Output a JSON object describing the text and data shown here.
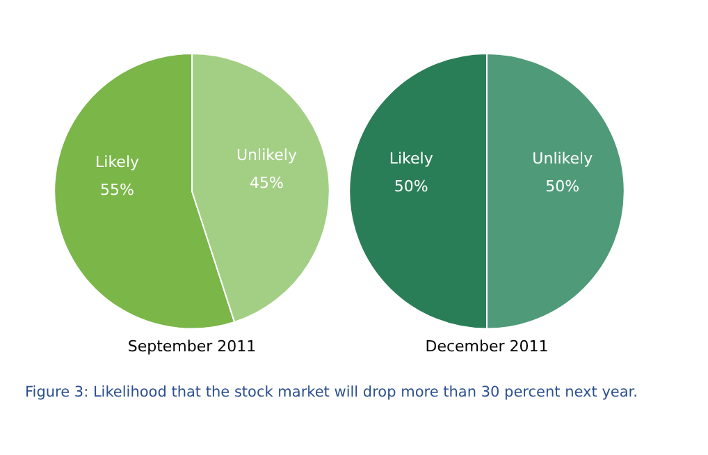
{
  "chart_data": [
    {
      "type": "pie",
      "title": "September 2011",
      "categories": [
        "Likely",
        "Unlikely"
      ],
      "values": [
        55,
        45
      ],
      "colors": [
        "#7ab648",
        "#a3cf85"
      ],
      "value_labels": [
        "55%",
        "45%"
      ],
      "legend": false,
      "annotations": [
        "Figure 3: Likelihood that the stock market will drop more than 30 percent next year."
      ]
    },
    {
      "type": "pie",
      "title": "December 2011",
      "categories": [
        "Likely",
        "Unlikely"
      ],
      "values": [
        50,
        50
      ],
      "colors": [
        "#2a7e57",
        "#4f9a78"
      ],
      "value_labels": [
        "50%",
        "50%"
      ],
      "legend": false
    }
  ]
}
